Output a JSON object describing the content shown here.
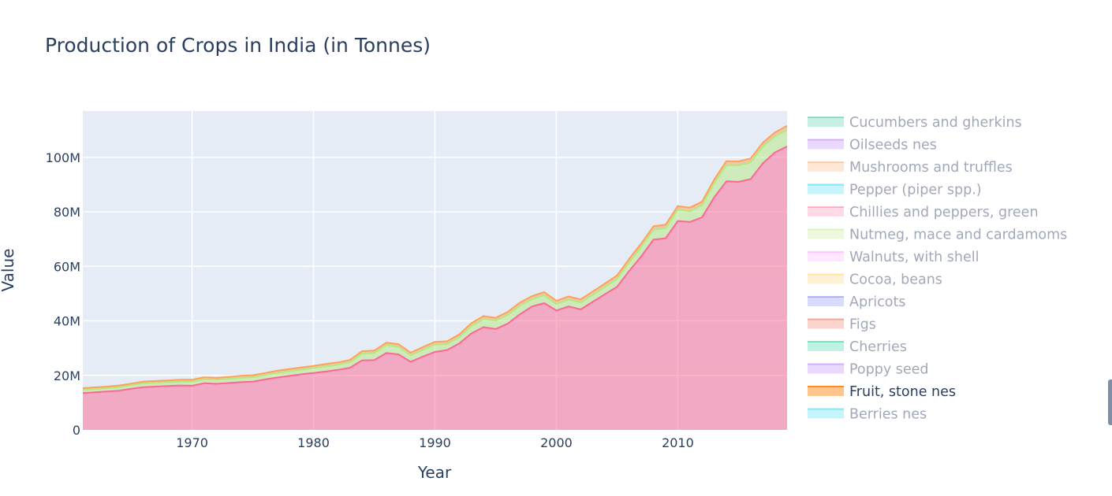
{
  "chart_data": {
    "type": "area",
    "title": "Production of Crops in India (in Tonnes)",
    "xlabel": "Year",
    "ylabel": "Value",
    "xlim": [
      1961,
      2019
    ],
    "ylim": [
      0,
      117000000
    ],
    "x_ticks": [
      1970,
      1980,
      1990,
      2000,
      2010
    ],
    "y_ticks": [
      {
        "value": 0,
        "label": "0"
      },
      {
        "value": 20000000,
        "label": "20M"
      },
      {
        "value": 40000000,
        "label": "40M"
      },
      {
        "value": 60000000,
        "label": "60M"
      },
      {
        "value": 80000000,
        "label": "80M"
      },
      {
        "value": 100000000,
        "label": "100M"
      }
    ],
    "grid": true,
    "legend_position": "right",
    "x": [
      1961,
      1962,
      1963,
      1964,
      1965,
      1966,
      1967,
      1968,
      1969,
      1970,
      1971,
      1972,
      1973,
      1974,
      1975,
      1976,
      1977,
      1978,
      1979,
      1980,
      1981,
      1982,
      1983,
      1984,
      1985,
      1986,
      1987,
      1988,
      1989,
      1990,
      1991,
      1992,
      1993,
      1994,
      1995,
      1996,
      1997,
      1998,
      1999,
      2000,
      2001,
      2002,
      2003,
      2004,
      2005,
      2006,
      2007,
      2008,
      2009,
      2010,
      2011,
      2012,
      2013,
      2014,
      2015,
      2016,
      2017,
      2018,
      2019
    ],
    "series": [
      {
        "name": "Chillies and peppers, green",
        "color": "#ff6692",
        "visible": true,
        "values": [
          13500000,
          13800000,
          14100000,
          14400000,
          15100000,
          15700000,
          15900000,
          16100000,
          16300000,
          16200000,
          17100000,
          16900000,
          17200000,
          17500000,
          17700000,
          18500000,
          19200000,
          19800000,
          20400000,
          20900000,
          21400000,
          22000000,
          22800000,
          25500000,
          25600000,
          28200000,
          27700000,
          25000000,
          26900000,
          28600000,
          29300000,
          31700000,
          35400000,
          37700000,
          37000000,
          39000000,
          42400000,
          45300000,
          46500000,
          43800000,
          45300000,
          44200000,
          47000000,
          49800000,
          52500000,
          58300000,
          63700000,
          69800000,
          70300000,
          76600000,
          76300000,
          78000000,
          85300000,
          91200000,
          91000000,
          92000000,
          97800000,
          101800000,
          104000000
        ]
      },
      {
        "name": "Nutmeg, mace and cardamoms",
        "color": "#b6e880",
        "visible": true,
        "values": [
          1200000,
          1200000,
          1200000,
          1300000,
          1300000,
          1400000,
          1400000,
          1400000,
          1400000,
          1500000,
          1500000,
          1500000,
          1500000,
          1600000,
          1600000,
          1600000,
          1700000,
          1700000,
          1700000,
          1800000,
          1900000,
          1900000,
          2000000,
          2500000,
          2600000,
          2900000,
          2800000,
          2400000,
          2500000,
          2700000,
          2200000,
          2300000,
          2700000,
          3000000,
          3100000,
          3200000,
          3200000,
          2700000,
          2900000,
          2400000,
          2500000,
          2500000,
          2600000,
          2700000,
          2900000,
          3200000,
          3500000,
          3600000,
          3700000,
          4200000,
          3900000,
          4400000,
          5200000,
          6000000,
          6100000,
          6200000,
          6100000,
          5900000,
          6100000
        ]
      },
      {
        "name": "Fruit, stone nes",
        "color": "#ffa15a",
        "visible": true,
        "values": [
          600000,
          600000,
          600000,
          600000,
          600000,
          650000,
          650000,
          650000,
          700000,
          700000,
          700000,
          700000,
          700000,
          750000,
          750000,
          750000,
          800000,
          800000,
          800000,
          800000,
          850000,
          850000,
          850000,
          900000,
          900000,
          900000,
          950000,
          950000,
          950000,
          1000000,
          1000000,
          1000000,
          1050000,
          1050000,
          1050000,
          1100000,
          1100000,
          1100000,
          1150000,
          1150000,
          1150000,
          1200000,
          1200000,
          1200000,
          1250000,
          1250000,
          1250000,
          1300000,
          1300000,
          1300000,
          1350000,
          1350000,
          1350000,
          1400000,
          1400000,
          1400000,
          1450000,
          1450000,
          1500000
        ]
      }
    ],
    "legend_entries": [
      {
        "name": "Cucumbers and gherkins",
        "color": "#1cc49a",
        "active": false
      },
      {
        "name": "Oilseeds nes",
        "color": "#ab63fa",
        "active": false
      },
      {
        "name": "Mushrooms and truffles",
        "color": "#ffa15a",
        "active": false
      },
      {
        "name": "Pepper (piper spp.)",
        "color": "#19d3f3",
        "active": false
      },
      {
        "name": "Chillies and peppers, green",
        "color": "#ff6692",
        "active": false
      },
      {
        "name": "Nutmeg, mace and cardamoms",
        "color": "#b6e880",
        "active": false
      },
      {
        "name": "Walnuts, with shell",
        "color": "#ff97ff",
        "active": false
      },
      {
        "name": "Cocoa, beans",
        "color": "#fecb52",
        "active": false
      },
      {
        "name": "Apricots",
        "color": "#636efa",
        "active": false
      },
      {
        "name": "Figs",
        "color": "#ef553b",
        "active": false
      },
      {
        "name": "Cherries",
        "color": "#00cc96",
        "active": false
      },
      {
        "name": "Poppy seed",
        "color": "#ab63fa",
        "active": false
      },
      {
        "name": "Fruit, stone nes",
        "color": "#ff8c1a",
        "active": true
      },
      {
        "name": "Berries nes",
        "color": "#19d3f3",
        "active": false
      }
    ]
  }
}
